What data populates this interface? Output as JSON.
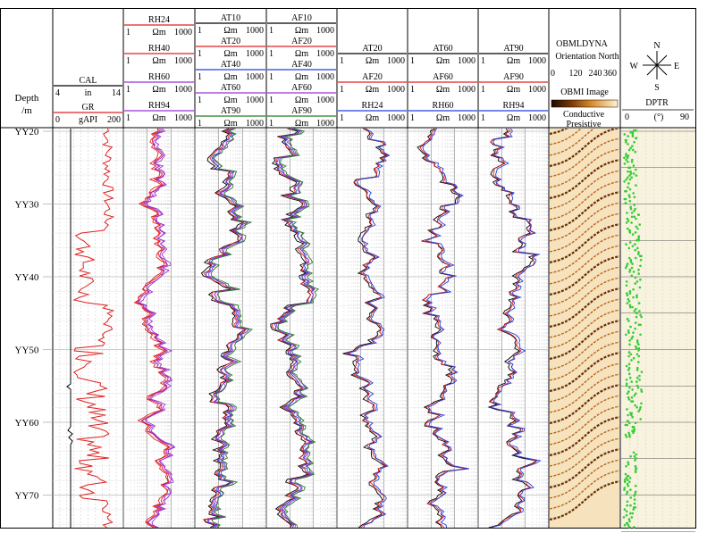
{
  "chart_data": {
    "type": "line",
    "title": "",
    "depth_axis": {
      "header": [
        "Depth",
        "/m"
      ],
      "ticks": [
        "YY20",
        "YY30",
        "YY40",
        "YY50",
        "YY60",
        "YY70"
      ],
      "range": [
        20,
        75
      ],
      "unit": "m"
    },
    "tracks": [
      {
        "id": "gr",
        "curves": [
          {
            "name": "CAL",
            "unit": "in",
            "min": "4",
            "max": "14",
            "color": "#000000"
          },
          {
            "name": "GR",
            "unit": "gAPI",
            "min": "0",
            "max": "200",
            "color": "#e02020"
          }
        ]
      },
      {
        "id": "rh",
        "curves": [
          {
            "name": "RH24",
            "unit": "Ωm",
            "min": "1",
            "max": "1000",
            "color": "#e02020"
          },
          {
            "name": "RH40",
            "unit": "Ωm",
            "min": "1",
            "max": "1000",
            "color": "#e02020"
          },
          {
            "name": "RH60",
            "unit": "Ωm",
            "min": "1",
            "max": "1000",
            "color": "#9b30d0"
          },
          {
            "name": "RH94",
            "unit": "Ωm",
            "min": "1",
            "max": "1000",
            "color": "#9b30d0"
          }
        ]
      },
      {
        "id": "at",
        "curves": [
          {
            "name": "AT10",
            "unit": "Ωm",
            "min": "1",
            "max": "1000",
            "color": "#000000"
          },
          {
            "name": "AT20",
            "unit": "Ωm",
            "min": "1",
            "max": "1000",
            "color": "#e02020"
          },
          {
            "name": "AT40",
            "unit": "Ωm",
            "min": "1",
            "max": "1000",
            "color": "#2040e0"
          },
          {
            "name": "AT60",
            "unit": "Ωm",
            "min": "1",
            "max": "1000",
            "color": "#9b30d0"
          },
          {
            "name": "AT90",
            "unit": "Ωm",
            "min": "1",
            "max": "1000",
            "color": "#208020"
          }
        ]
      },
      {
        "id": "af",
        "curves": [
          {
            "name": "AF10",
            "unit": "Ωm",
            "min": "1",
            "max": "1000",
            "color": "#000000"
          },
          {
            "name": "AF20",
            "unit": "Ωm",
            "min": "1",
            "max": "1000",
            "color": "#e02020"
          },
          {
            "name": "AF40",
            "unit": "Ωm",
            "min": "1",
            "max": "1000",
            "color": "#2040e0"
          },
          {
            "name": "AF60",
            "unit": "Ωm",
            "min": "1",
            "max": "1000",
            "color": "#9b30d0"
          },
          {
            "name": "AF90",
            "unit": "Ωm",
            "min": "1",
            "max": "1000",
            "color": "#208020"
          }
        ]
      },
      {
        "id": "cmp20",
        "curves": [
          {
            "name": "AT20",
            "unit": "Ωm",
            "min": "1",
            "max": "1000",
            "color": "#000000"
          },
          {
            "name": "AF20",
            "unit": "Ωm",
            "min": "1",
            "max": "1000",
            "color": "#e02020"
          },
          {
            "name": "RH24",
            "unit": "Ωm",
            "min": "1",
            "max": "1000",
            "color": "#2040e0"
          }
        ]
      },
      {
        "id": "cmp60",
        "curves": [
          {
            "name": "AT60",
            "unit": "Ωm",
            "min": "1",
            "max": "1000",
            "color": "#000000"
          },
          {
            "name": "AF60",
            "unit": "Ωm",
            "min": "1",
            "max": "1000",
            "color": "#e02020"
          },
          {
            "name": "RH60",
            "unit": "Ωm",
            "min": "1",
            "max": "1000",
            "color": "#2040e0"
          }
        ]
      },
      {
        "id": "cmp90",
        "curves": [
          {
            "name": "AT90",
            "unit": "Ωm",
            "min": "1",
            "max": "1000",
            "color": "#000000"
          },
          {
            "name": "AF90",
            "unit": "Ωm",
            "min": "1",
            "max": "1000",
            "color": "#e02020"
          },
          {
            "name": "RH94",
            "unit": "Ωm",
            "min": "1",
            "max": "1000",
            "color": "#2040e0"
          }
        ]
      }
    ],
    "image_track": {
      "title": "OBMLDYNA",
      "orientation_label": "Orientation North",
      "scale": [
        "0",
        "120",
        "240",
        "360"
      ],
      "image_label": "OBMI Image",
      "low_label": "Conductive",
      "high_label": "Presistive"
    },
    "dip_track": {
      "compass": {
        "n": "N",
        "s": "S",
        "e": "E",
        "w": "W"
      },
      "label": "DPTR",
      "unit": "(°)",
      "min": "0",
      "max": "90",
      "color": "#33cc33"
    }
  }
}
